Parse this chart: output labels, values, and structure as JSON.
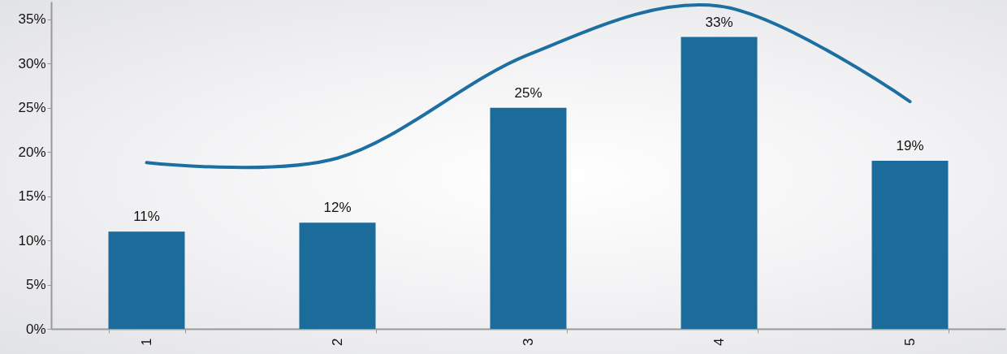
{
  "chart_data": {
    "type": "bar",
    "categories": [
      "1",
      "2",
      "3",
      "4",
      "5"
    ],
    "series": [
      {
        "color": "#1b6c9b",
        "values": [
          11,
          12,
          25,
          33,
          19
        ],
        "value_labels": [
          "11%",
          "12%",
          "25%",
          "33%",
          "19%"
        ]
      },
      {
        "type": "line",
        "color": "#1c6fa0",
        "values": [
          18.8,
          19.3,
          31,
          36.5,
          25.7
        ]
      }
    ],
    "ylim": [
      0,
      37
    ],
    "yticks": [
      {
        "value": 0,
        "label": "0%"
      },
      {
        "value": 5,
        "label": "5%"
      },
      {
        "value": 10,
        "label": "10%"
      },
      {
        "value": 15,
        "label": "15%"
      },
      {
        "value": 20,
        "label": "20%"
      },
      {
        "value": 25,
        "label": "25%"
      },
      {
        "value": 30,
        "label": "30%"
      },
      {
        "value": 35,
        "label": "35%"
      }
    ],
    "grid": false
  }
}
